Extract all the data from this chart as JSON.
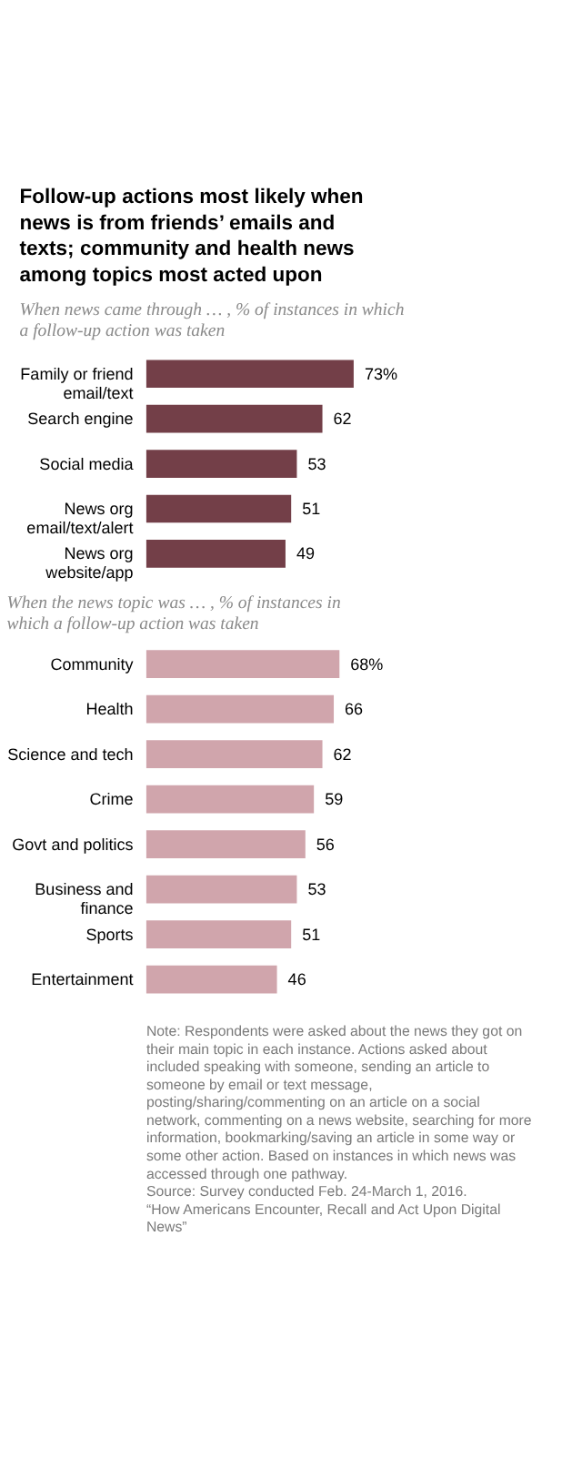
{
  "chart_data": [
    {
      "type": "bar",
      "orientation": "horizontal",
      "title": "Follow-up actions most likely when news is from friends’ emails and texts; community and health news among topics most acted upon",
      "subtitle": "When news came through … , % of instances in which a follow-up action was taken",
      "categories": [
        "Family or friend email/text",
        "Search engine",
        "Social media",
        "News org email/text/alert",
        "News org website/app"
      ],
      "values": [
        73,
        62,
        53,
        51,
        49
      ],
      "color": "#733f48",
      "value_labels": [
        "73%",
        "62",
        "53",
        "51",
        "49"
      ]
    },
    {
      "type": "bar",
      "orientation": "horizontal",
      "subtitle": "When the news topic was … , % of instances in which a follow-up action was taken",
      "categories": [
        "Community",
        "Health",
        "Science and tech",
        "Crime",
        "Govt and politics",
        "Business and finance",
        "Sports",
        "Entertainment"
      ],
      "values": [
        68,
        66,
        62,
        59,
        56,
        53,
        51,
        46
      ],
      "color": "#d0a5ac",
      "value_labels": [
        "68%",
        "66",
        "62",
        "59",
        "56",
        "53",
        "51",
        "46"
      ],
      "annotations": [
        "Note: Respondents were asked about the news they got on their main topic in each instance. Actions asked about included speaking with someone, sending an article to someone by email or text message, posting/sharing/commenting on an article on a social network, commenting on a news website, searching for more information, bookmarking/saving an article in some way or some other action. Based on instances in which news was accessed through one pathway.",
        "Source: Survey conducted Feb. 24-March 1, 2016.",
        "“How Americans Encounter, Recall and Act Upon Digital News”"
      ]
    }
  ]
}
